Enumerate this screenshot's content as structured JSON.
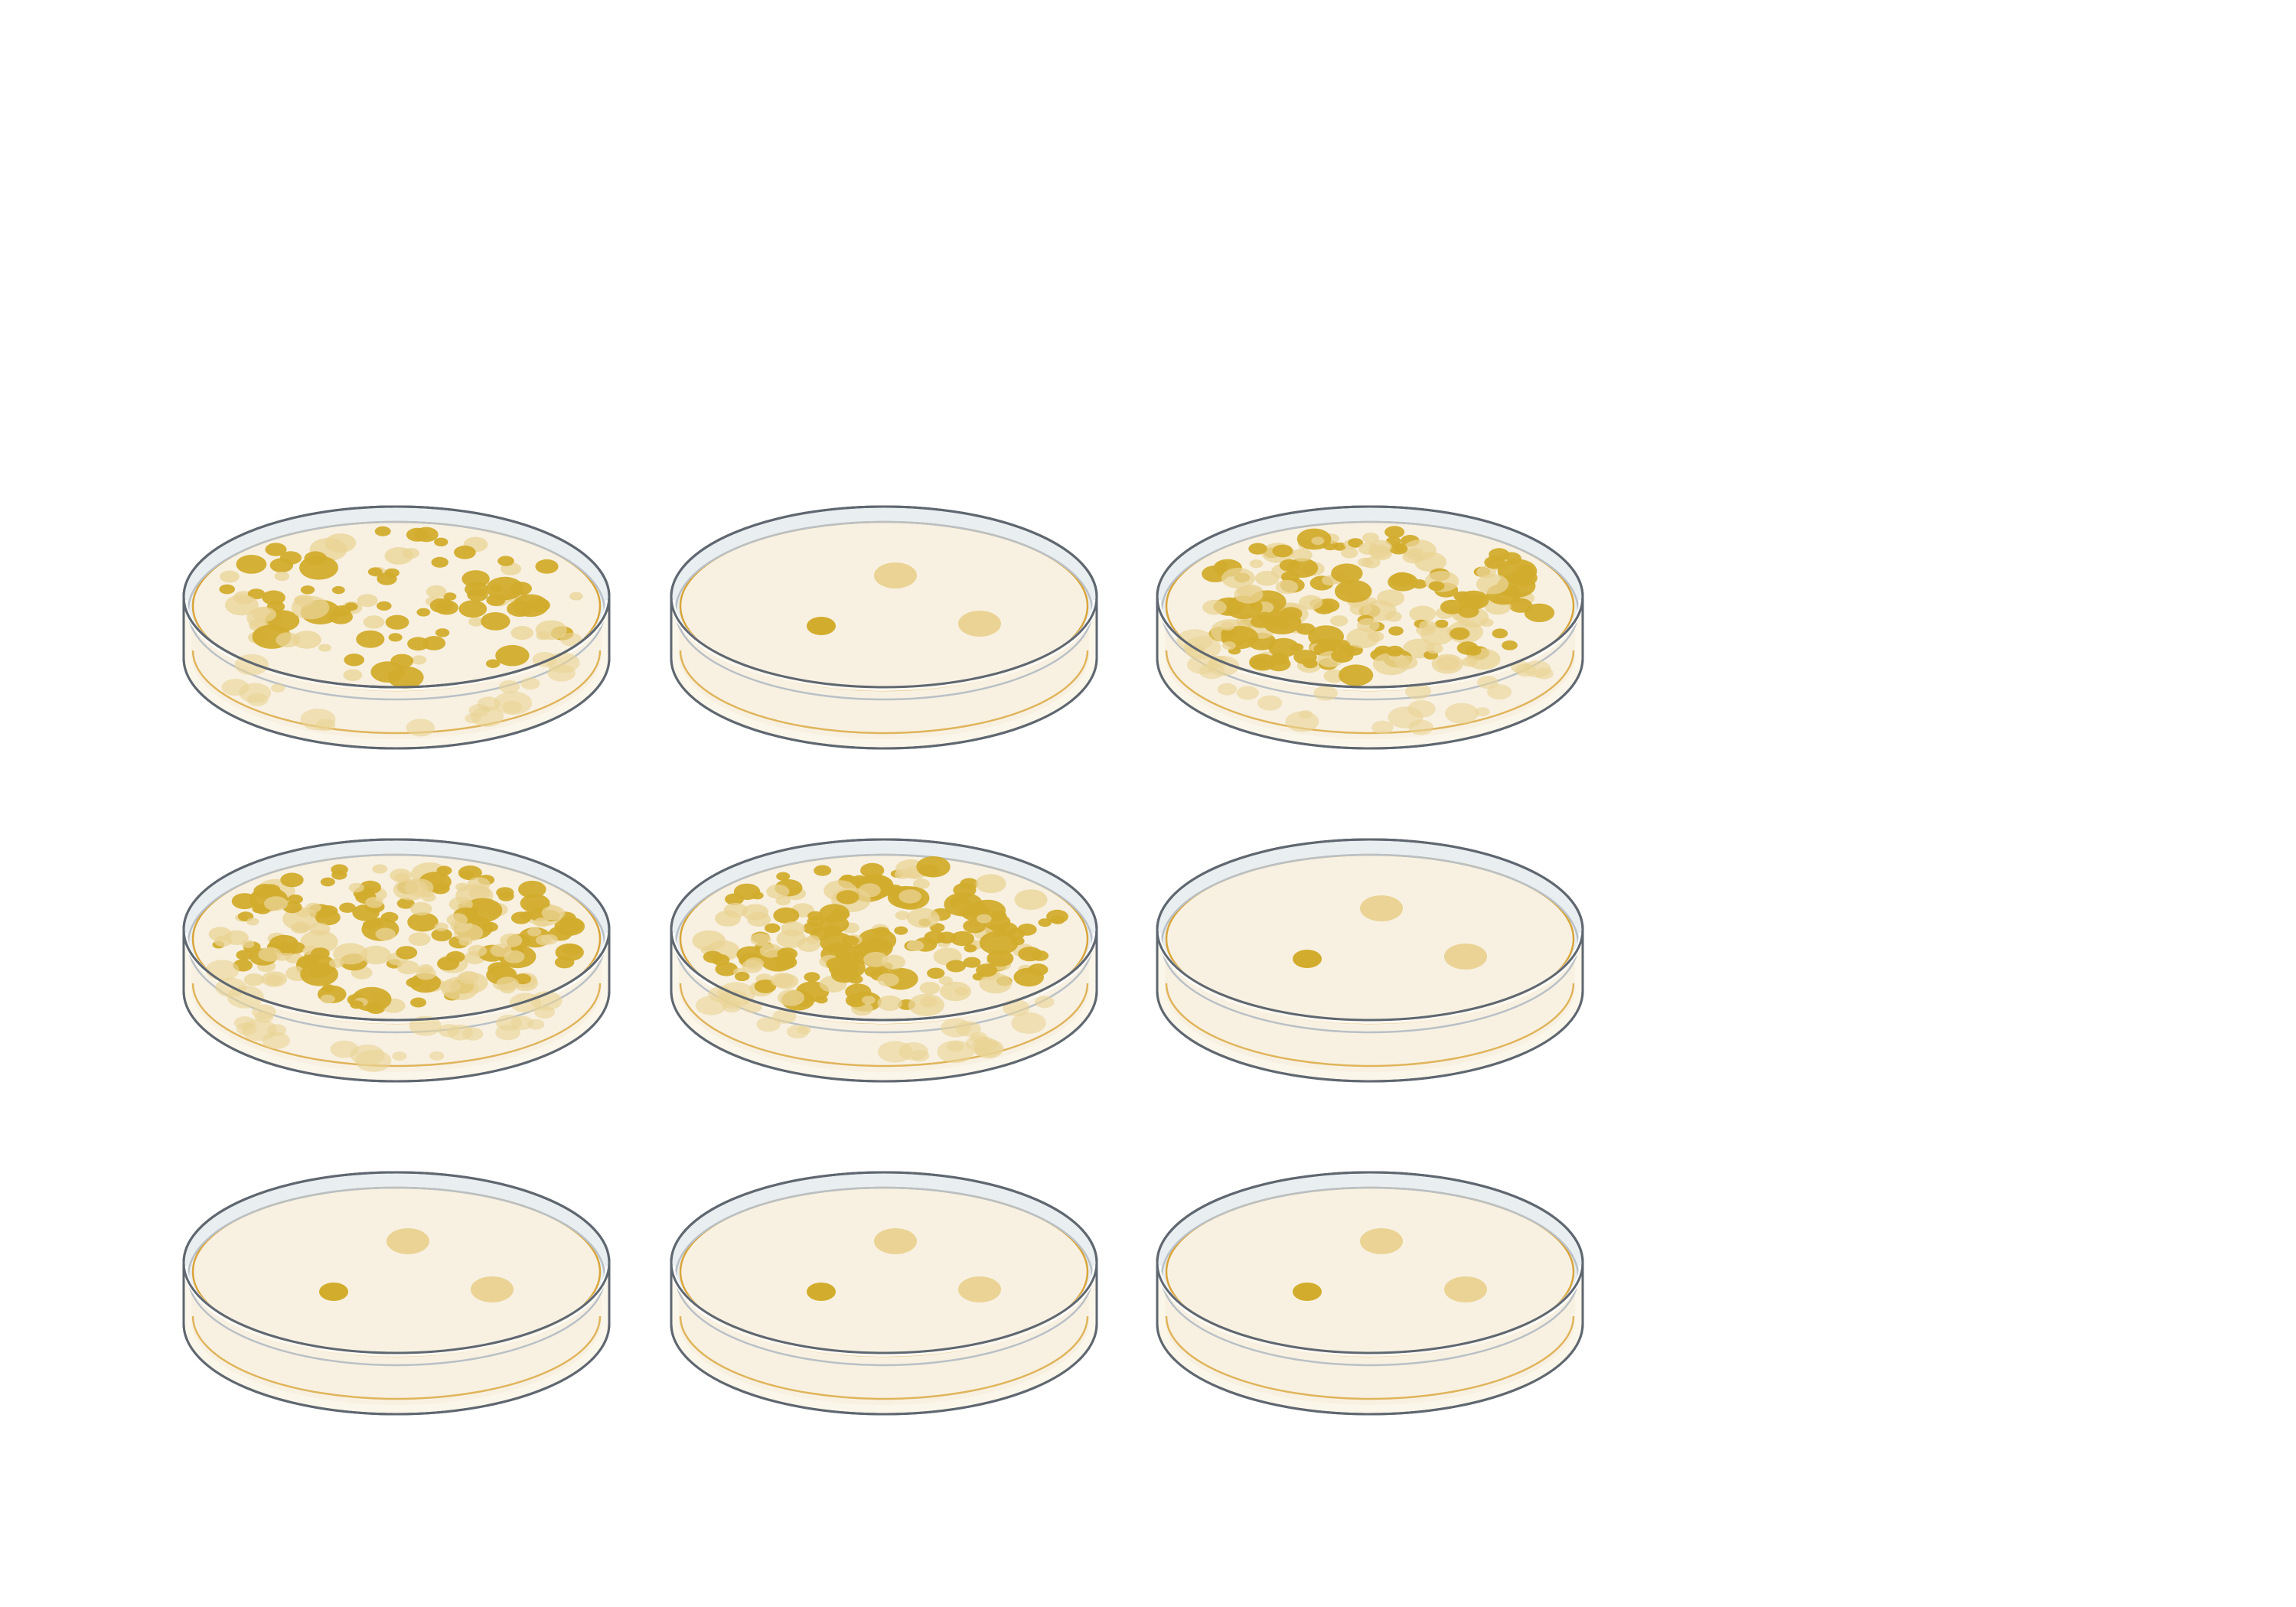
{
  "figure": {
    "plates": [
      {
        "row": 1,
        "col": 1,
        "growth": "dense"
      },
      {
        "row": 1,
        "col": 2,
        "growth": "sparse",
        "colonies_visible": 3
      },
      {
        "row": 1,
        "col": 3,
        "growth": "very-dense"
      },
      {
        "row": 2,
        "col": 1,
        "growth": "very-dense"
      },
      {
        "row": 2,
        "col": 2,
        "growth": "very-dense"
      },
      {
        "row": 2,
        "col": 3,
        "growth": "sparse",
        "colonies_visible": 3
      },
      {
        "row": 3,
        "col": 1,
        "growth": "sparse",
        "colonies_visible": 3
      },
      {
        "row": 3,
        "col": 2,
        "growth": "sparse",
        "colonies_visible": 3
      },
      {
        "row": 3,
        "col": 3,
        "growth": "sparse",
        "colonies_visible": 3
      }
    ],
    "colors": {
      "background": "#ffffff",
      "dish_outline": "#5f6770",
      "dish_lid_tint": "#e9eef1",
      "medium": "#f8f1e2",
      "medium_rim": "#d9a53a",
      "colony_dark": "#d2ac2c",
      "colony_light": "#ead394"
    }
  }
}
